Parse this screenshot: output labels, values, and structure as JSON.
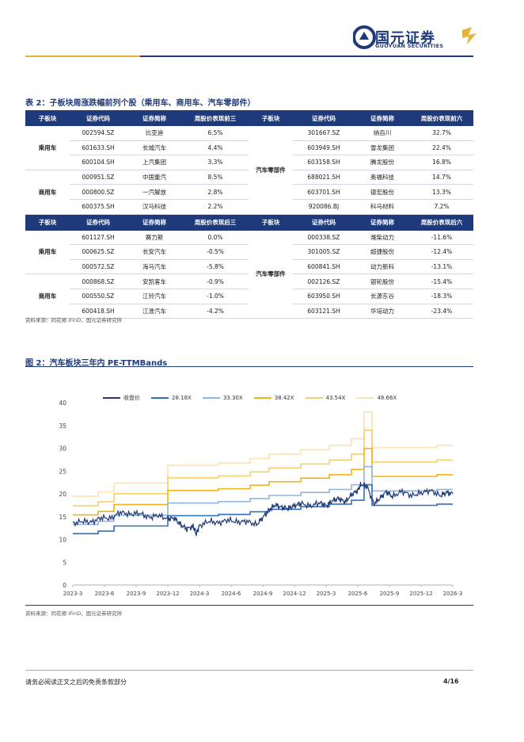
{
  "header": {
    "logo_cn": "国元证券",
    "logo_en": "GUOYUAN SECURITIES"
  },
  "table": {
    "caption": "表 2：子板块周涨跌幅前列个股（乘用车、商用车、汽车零部件）",
    "top_headers": [
      "子板块",
      "证券代码",
      "证券简称",
      "周股价表现前三",
      "子板块",
      "证券代码",
      "证券简称",
      "周股价表现前六"
    ],
    "bottom_headers": [
      "子板块",
      "证券代码",
      "证券简称",
      "周股价表现后三",
      "子板块",
      "证券代码",
      "证券简称",
      "周股价表现后六"
    ],
    "top_left_groups": [
      {
        "group": "乘用车",
        "rows": [
          [
            "002594.SZ",
            "比亚迪",
            "6.5%"
          ],
          [
            "601633.SH",
            "长城汽车",
            "4.4%"
          ],
          [
            "600104.SH",
            "上汽集团",
            "3.3%"
          ]
        ]
      },
      {
        "group": "商用车",
        "rows": [
          [
            "000951.SZ",
            "中国重汽",
            "8.5%"
          ],
          [
            "000800.SZ",
            "一汽解放",
            "2.8%"
          ],
          [
            "600375.SH",
            "汉马科技",
            "2.2%"
          ]
        ]
      }
    ],
    "top_right_group": "汽车零部件",
    "top_right_rows": [
      [
        "301667.SZ",
        "纳百川",
        "32.7%"
      ],
      [
        "603949.SH",
        "雪龙集团",
        "22.4%"
      ],
      [
        "603158.SH",
        "腾龙股份",
        "16.8%"
      ],
      [
        "688021.SH",
        "奥福科技",
        "14.7%"
      ],
      [
        "603701.SH",
        "德宏股份",
        "13.3%"
      ],
      [
        "920086.BJ",
        "科马材料",
        "7.2%"
      ]
    ],
    "bottom_left_groups": [
      {
        "group": "乘用车",
        "rows": [
          [
            "601127.SH",
            "赛力斯",
            "0.0%"
          ],
          [
            "000625.SZ",
            "长安汽车",
            "-0.5%"
          ],
          [
            "000572.SZ",
            "海马汽车",
            "-5.8%"
          ]
        ]
      },
      {
        "group": "商用车",
        "rows": [
          [
            "000868.SZ",
            "安凯客车",
            "-0.9%"
          ],
          [
            "000550.SZ",
            "江铃汽车",
            "-1.0%"
          ],
          [
            "600418.SH",
            "江淮汽车",
            "-4.2%"
          ]
        ]
      }
    ],
    "bottom_right_group": "汽车零部件",
    "bottom_right_rows": [
      [
        "000338.SZ",
        "潍柴动力",
        "-11.6%"
      ],
      [
        "301005.SZ",
        "超捷股份",
        "-12.4%"
      ],
      [
        "600841.SH",
        "动力新科",
        "-13.1%"
      ],
      [
        "002126.SZ",
        "银轮股份",
        "-15.4%"
      ],
      [
        "603950.SH",
        "长源东谷",
        "-18.3%"
      ],
      [
        "603121.SH",
        "华培动力",
        "-23.4%"
      ]
    ],
    "source": "资料来源：同花顺 iFinD，国元证券研究所"
  },
  "chart_data": {
    "caption": "图 2：汽车板块三年内 PE-TTMBands",
    "type": "line",
    "x": [
      "2023-3",
      "2023-6",
      "2023-9",
      "2023-12",
      "2024-3",
      "2024-6",
      "2024-9",
      "2024-12",
      "2025-3",
      "2025-6",
      "2025-9",
      "2025-12",
      "2026-3"
    ],
    "ylim": [
      0,
      40
    ],
    "yticks": [
      "0",
      "5",
      "10",
      "15",
      "20",
      "25",
      "30",
      "35",
      "40"
    ],
    "legend": [
      "收盘价",
      "28.18X",
      "33.30X",
      "38.42X",
      "43.54X",
      "48.66X"
    ],
    "colors": [
      "#1f3a7a",
      "#2f6fc2",
      "#8fb6e0",
      "#f1b31c",
      "#f6cf70",
      "#fae3b0"
    ],
    "multipliers": [
      28.18,
      33.3,
      38.42,
      43.54,
      48.66
    ],
    "eps_steps": [
      [
        0,
        0.4
      ],
      [
        0.8,
        0.42
      ],
      [
        1.3,
        0.46
      ],
      [
        3.0,
        0.54
      ],
      [
        4.6,
        0.55
      ],
      [
        5.6,
        0.57
      ],
      [
        6.2,
        0.59
      ],
      [
        7.2,
        0.61
      ],
      [
        8.1,
        0.63
      ],
      [
        8.8,
        0.66
      ],
      [
        9.2,
        0.78
      ],
      [
        9.45,
        0.62
      ],
      [
        10.5,
        0.62
      ],
      [
        11.5,
        0.63
      ],
      [
        12,
        0.63
      ]
    ],
    "close": [
      [
        0,
        13.5
      ],
      [
        0.3,
        14.0
      ],
      [
        0.6,
        13.8
      ],
      [
        0.9,
        14.8
      ],
      [
        1.2,
        14.6
      ],
      [
        1.5,
        16.0
      ],
      [
        1.8,
        15.5
      ],
      [
        2.1,
        15.8
      ],
      [
        2.4,
        14.8
      ],
      [
        2.7,
        15.3
      ],
      [
        3.0,
        14.5
      ],
      [
        3.2,
        14.7
      ],
      [
        3.4,
        13.3
      ],
      [
        3.6,
        12.3
      ],
      [
        3.8,
        12.9
      ],
      [
        3.9,
        11.2
      ],
      [
        4.0,
        13.0
      ],
      [
        4.3,
        14.0
      ],
      [
        4.6,
        13.6
      ],
      [
        4.9,
        14.3
      ],
      [
        5.2,
        13.8
      ],
      [
        5.5,
        14.0
      ],
      [
        5.8,
        13.2
      ],
      [
        6.0,
        14.8
      ],
      [
        6.2,
        16.5
      ],
      [
        6.4,
        17.6
      ],
      [
        6.6,
        17.0
      ],
      [
        6.8,
        16.8
      ],
      [
        7.0,
        17.4
      ],
      [
        7.2,
        17.9
      ],
      [
        7.5,
        17.3
      ],
      [
        7.8,
        18.1
      ],
      [
        8.0,
        17.4
      ],
      [
        8.2,
        18.5
      ],
      [
        8.4,
        19.0
      ],
      [
        8.6,
        18.2
      ],
      [
        8.8,
        19.8
      ],
      [
        9.0,
        20.8
      ],
      [
        9.1,
        22.1
      ],
      [
        9.3,
        21.6
      ],
      [
        9.5,
        17.8
      ],
      [
        9.7,
        19.0
      ],
      [
        9.9,
        20.5
      ],
      [
        10.1,
        19.4
      ],
      [
        10.4,
        20.6
      ],
      [
        10.7,
        19.6
      ],
      [
        11.0,
        20.2
      ],
      [
        11.3,
        20.8
      ],
      [
        11.6,
        19.6
      ],
      [
        11.8,
        20.3
      ],
      [
        12.0,
        20.0
      ]
    ],
    "source": "资料来源：同花顺 iFinD，国元证券研究所"
  },
  "footer": {
    "disclaimer": "请务必阅读正文之后的免责条款部分",
    "page": "4/16"
  }
}
